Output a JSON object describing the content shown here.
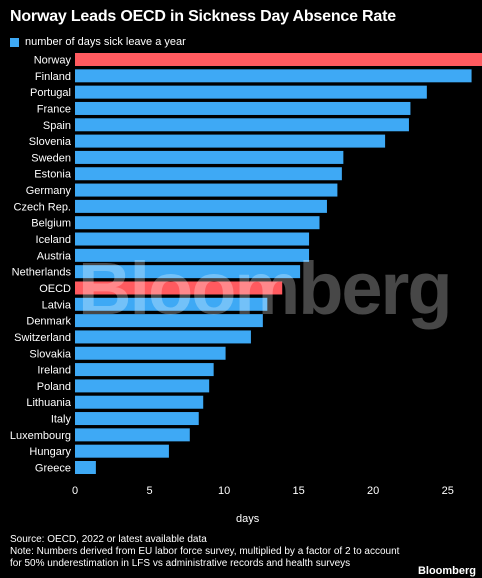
{
  "chart_data": {
    "type": "bar",
    "orientation": "horizontal",
    "title": "Norway Leads OECD in Sickness Day Absence Rate",
    "legend": {
      "label": "number of days sick leave a year",
      "placement": "top-left"
    },
    "categories": [
      "Norway",
      "Finland",
      "Portugal",
      "France",
      "Spain",
      "Slovenia",
      "Sweden",
      "Estonia",
      "Germany",
      "Czech Rep.",
      "Belgium",
      "Iceland",
      "Austria",
      "Netherlands",
      "OECD",
      "Latvia",
      "Denmark",
      "Switzerland",
      "Slovakia",
      "Ireland",
      "Poland",
      "Lithuania",
      "Italy",
      "Luxembourg",
      "Hungary",
      "Greece"
    ],
    "values": [
      27.3,
      26.6,
      23.6,
      22.5,
      22.4,
      20.8,
      18.0,
      17.9,
      17.6,
      16.9,
      16.4,
      15.7,
      15.7,
      15.1,
      13.9,
      12.9,
      12.6,
      11.8,
      10.1,
      9.3,
      9.0,
      8.6,
      8.3,
      7.7,
      6.3,
      1.4
    ],
    "highlight": [
      "Norway",
      "OECD"
    ],
    "xlabel": "days",
    "xlim": [
      0,
      27.3
    ],
    "xticks": [
      0,
      5,
      10,
      15,
      20,
      25
    ],
    "grid": false
  },
  "colors": {
    "bar": "#3ea9f5",
    "highlight": "#ff5a5f",
    "background": "#000000",
    "text": "#ffffff"
  },
  "watermark": "Bloomberg",
  "source": "Source: OECD, 2022 or latest available data",
  "note": "Note: Numbers derived from EU labor force survey, multiplied by a factor of 2 to account for 50% underestimation in LFS vs administrative records and health surveys",
  "brand": "Bloomberg"
}
